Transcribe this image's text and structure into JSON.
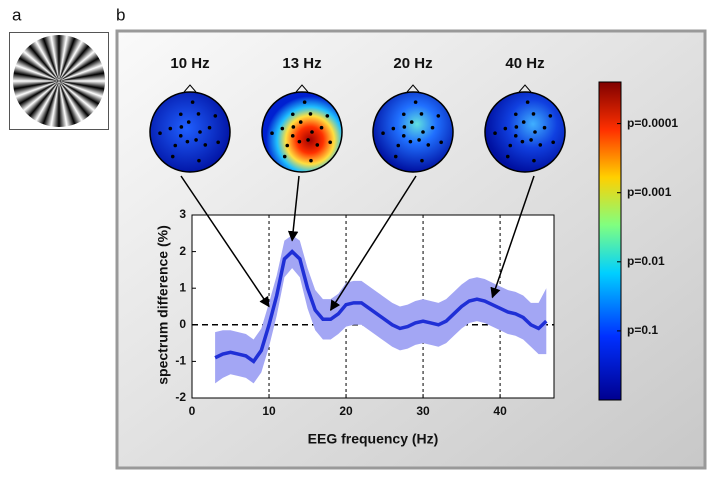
{
  "panel_labels": [
    "a",
    "b"
  ],
  "chart_data": {
    "type": "line",
    "x_label": "EEG frequency (Hz)",
    "y_label": "spectrum difference (%)",
    "x": [
      3,
      4,
      5,
      6,
      7,
      8,
      9,
      10,
      11,
      12,
      13,
      14,
      15,
      16,
      17,
      18,
      19,
      20,
      21,
      22,
      23,
      24,
      25,
      26,
      27,
      28,
      29,
      30,
      31,
      32,
      33,
      34,
      35,
      36,
      37,
      38,
      39,
      40,
      41,
      42,
      43,
      44,
      45,
      46
    ],
    "series": [
      {
        "color": "#1f2fd6",
        "band_color": "#a3a6f4",
        "values": [
          -0.9,
          -0.8,
          -0.75,
          -0.8,
          -0.85,
          -1.0,
          -0.7,
          0.0,
          0.8,
          1.8,
          2.0,
          1.8,
          1.0,
          0.4,
          0.15,
          0.15,
          0.3,
          0.55,
          0.6,
          0.6,
          0.45,
          0.3,
          0.15,
          0.0,
          -0.1,
          -0.05,
          0.05,
          0.1,
          0.05,
          0.0,
          0.1,
          0.3,
          0.5,
          0.65,
          0.7,
          0.65,
          0.55,
          0.45,
          0.35,
          0.3,
          0.2,
          0.0,
          -0.1,
          0.1
        ],
        "error": [
          0.7,
          0.65,
          0.6,
          0.6,
          0.6,
          0.6,
          0.6,
          0.6,
          0.55,
          0.5,
          0.45,
          0.5,
          0.55,
          0.55,
          0.55,
          0.55,
          0.55,
          0.6,
          0.6,
          0.6,
          0.6,
          0.6,
          0.6,
          0.6,
          0.6,
          0.6,
          0.6,
          0.6,
          0.6,
          0.6,
          0.6,
          0.6,
          0.6,
          0.6,
          0.6,
          0.6,
          0.6,
          0.6,
          0.6,
          0.6,
          0.6,
          0.6,
          0.7,
          0.9
        ]
      }
    ],
    "xlim": [
      0,
      47
    ],
    "ylim": [
      -2,
      3
    ],
    "xticks": [
      0,
      10,
      20,
      30,
      40
    ],
    "yticks": [
      -2,
      -1,
      0,
      1,
      2,
      3
    ],
    "x_grid": [
      10,
      20,
      30,
      40
    ],
    "hline": 0,
    "topomaps": [
      {
        "label": "10 Hz",
        "x": 10,
        "y": 0.5
      },
      {
        "label": "13 Hz",
        "x": 13,
        "y": 2.3
      },
      {
        "label": "20 Hz",
        "x": 18,
        "y": 0.4
      },
      {
        "label": "40 Hz",
        "x": 39,
        "y": 0.75
      }
    ],
    "colorbar": {
      "clim": [
        2.5e-05,
        1
      ],
      "log": true,
      "ticks": [
        {
          "value": 0.0001,
          "label": "p=0.0001"
        },
        {
          "value": 0.001,
          "label": "p=0.001"
        },
        {
          "value": 0.01,
          "label": "p=0.01"
        },
        {
          "value": 0.1,
          "label": "p=0.1"
        }
      ]
    }
  }
}
